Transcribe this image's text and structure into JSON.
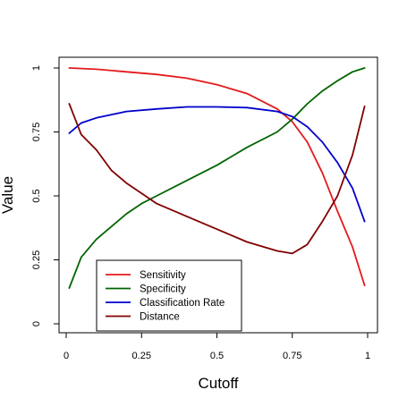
{
  "chart_data": {
    "type": "line",
    "title": "",
    "xlabel": "Cutoff",
    "ylabel": "Value",
    "xlim": [
      0,
      1
    ],
    "ylim": [
      0,
      1
    ],
    "x_ticks": [
      "0",
      "0.25",
      "0.5",
      "0.75",
      "1"
    ],
    "y_ticks": [
      "0",
      "0.25",
      "0.5",
      "0.75",
      "1"
    ],
    "grid": false,
    "legend_position": "bottom-left",
    "series": [
      {
        "name": "Sensitivity",
        "color": "#e41a1c",
        "x": [
          0.01,
          0.1,
          0.2,
          0.3,
          0.4,
          0.5,
          0.6,
          0.7,
          0.75,
          0.8,
          0.85,
          0.9,
          0.95,
          0.99
        ],
        "y": [
          1.0,
          0.995,
          0.985,
          0.975,
          0.96,
          0.935,
          0.9,
          0.84,
          0.79,
          0.71,
          0.59,
          0.44,
          0.3,
          0.15
        ]
      },
      {
        "name": "Specificity",
        "color": "#006400",
        "x": [
          0.01,
          0.05,
          0.1,
          0.15,
          0.2,
          0.25,
          0.3,
          0.4,
          0.5,
          0.6,
          0.7,
          0.75,
          0.8,
          0.85,
          0.9,
          0.95,
          0.99
        ],
        "y": [
          0.14,
          0.26,
          0.33,
          0.38,
          0.43,
          0.47,
          0.5,
          0.56,
          0.62,
          0.69,
          0.75,
          0.8,
          0.86,
          0.91,
          0.95,
          0.985,
          1.0
        ]
      },
      {
        "name": "Classification Rate",
        "color": "#0000cc",
        "x": [
          0.01,
          0.05,
          0.1,
          0.2,
          0.3,
          0.4,
          0.5,
          0.6,
          0.7,
          0.75,
          0.8,
          0.85,
          0.9,
          0.95,
          0.99
        ],
        "y": [
          0.745,
          0.785,
          0.805,
          0.83,
          0.84,
          0.848,
          0.848,
          0.845,
          0.83,
          0.81,
          0.77,
          0.71,
          0.63,
          0.53,
          0.4
        ]
      },
      {
        "name": "Distance",
        "color": "#800000",
        "x": [
          0.01,
          0.05,
          0.1,
          0.15,
          0.2,
          0.25,
          0.3,
          0.4,
          0.5,
          0.6,
          0.7,
          0.75,
          0.8,
          0.85,
          0.9,
          0.95,
          0.99
        ],
        "y": [
          0.86,
          0.74,
          0.68,
          0.6,
          0.55,
          0.51,
          0.47,
          0.42,
          0.37,
          0.32,
          0.285,
          0.275,
          0.31,
          0.4,
          0.5,
          0.66,
          0.85
        ]
      }
    ]
  }
}
